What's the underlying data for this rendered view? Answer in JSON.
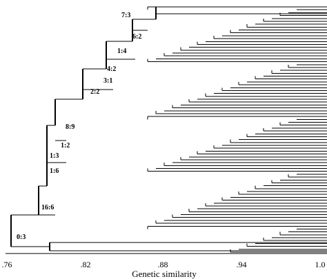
{
  "diagram": {
    "type": "dendrogram",
    "axis": {
      "title": "Genetic similarity",
      "ticks": [
        {
          "value": 0.76,
          "label": ".76"
        },
        {
          "value": 0.82,
          "label": ".82"
        },
        {
          "value": 0.88,
          "label": ".88"
        },
        {
          "value": 0.94,
          "label": ".94"
        },
        {
          "value": 1.0,
          "label": "1.0"
        }
      ],
      "range": [
        0.76,
        1.0
      ]
    },
    "cluster_labels": [
      "7:3",
      "6:2",
      "1:4",
      "4:2",
      "3:1",
      "2:2",
      "8:9",
      "1:2",
      "1:3",
      "1:6",
      "16:6",
      "0:3"
    ],
    "leaf_count": 86
  }
}
